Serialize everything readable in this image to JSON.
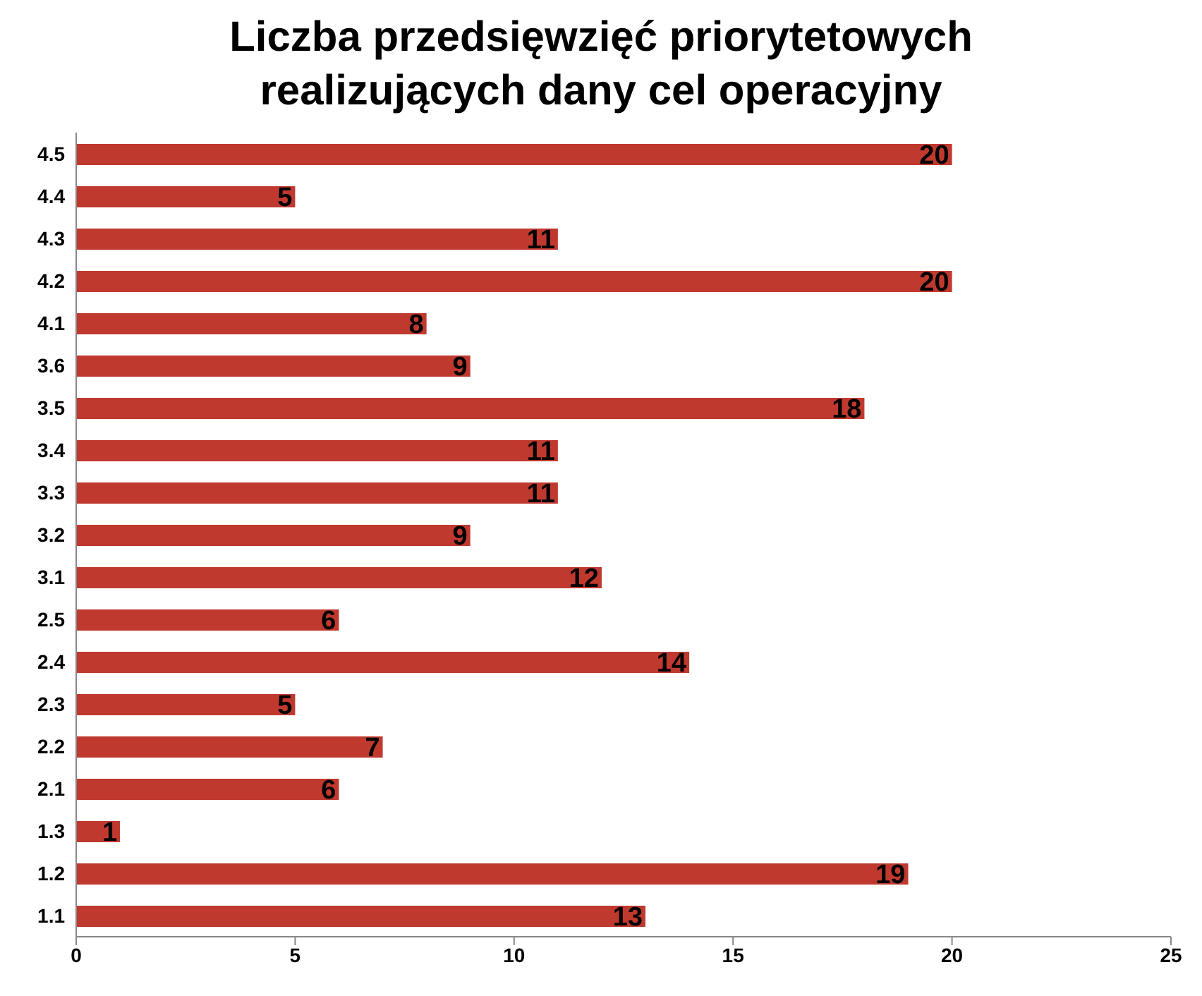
{
  "chart_data": {
    "type": "bar",
    "orientation": "horizontal",
    "title": "Liczba przedsięwzięć priorytetowych realizujących dany cel operacyjny",
    "categories": [
      "4.5",
      "4.4",
      "4.3",
      "4.2",
      "4.1",
      "3.6",
      "3.5",
      "3.4",
      "3.3",
      "3.2",
      "3.1",
      "2.5",
      "2.4",
      "2.3",
      "2.2",
      "2.1",
      "1.3",
      "1.2",
      "1.1"
    ],
    "values": [
      20,
      5,
      11,
      20,
      8,
      9,
      18,
      11,
      11,
      9,
      12,
      6,
      14,
      5,
      7,
      6,
      1,
      19,
      13
    ],
    "color": "#c0392f",
    "xlim": [
      0,
      25
    ],
    "xticks": [
      0,
      5,
      10,
      15,
      20,
      25
    ],
    "grid": false,
    "data_labels": true,
    "legend": false
  }
}
